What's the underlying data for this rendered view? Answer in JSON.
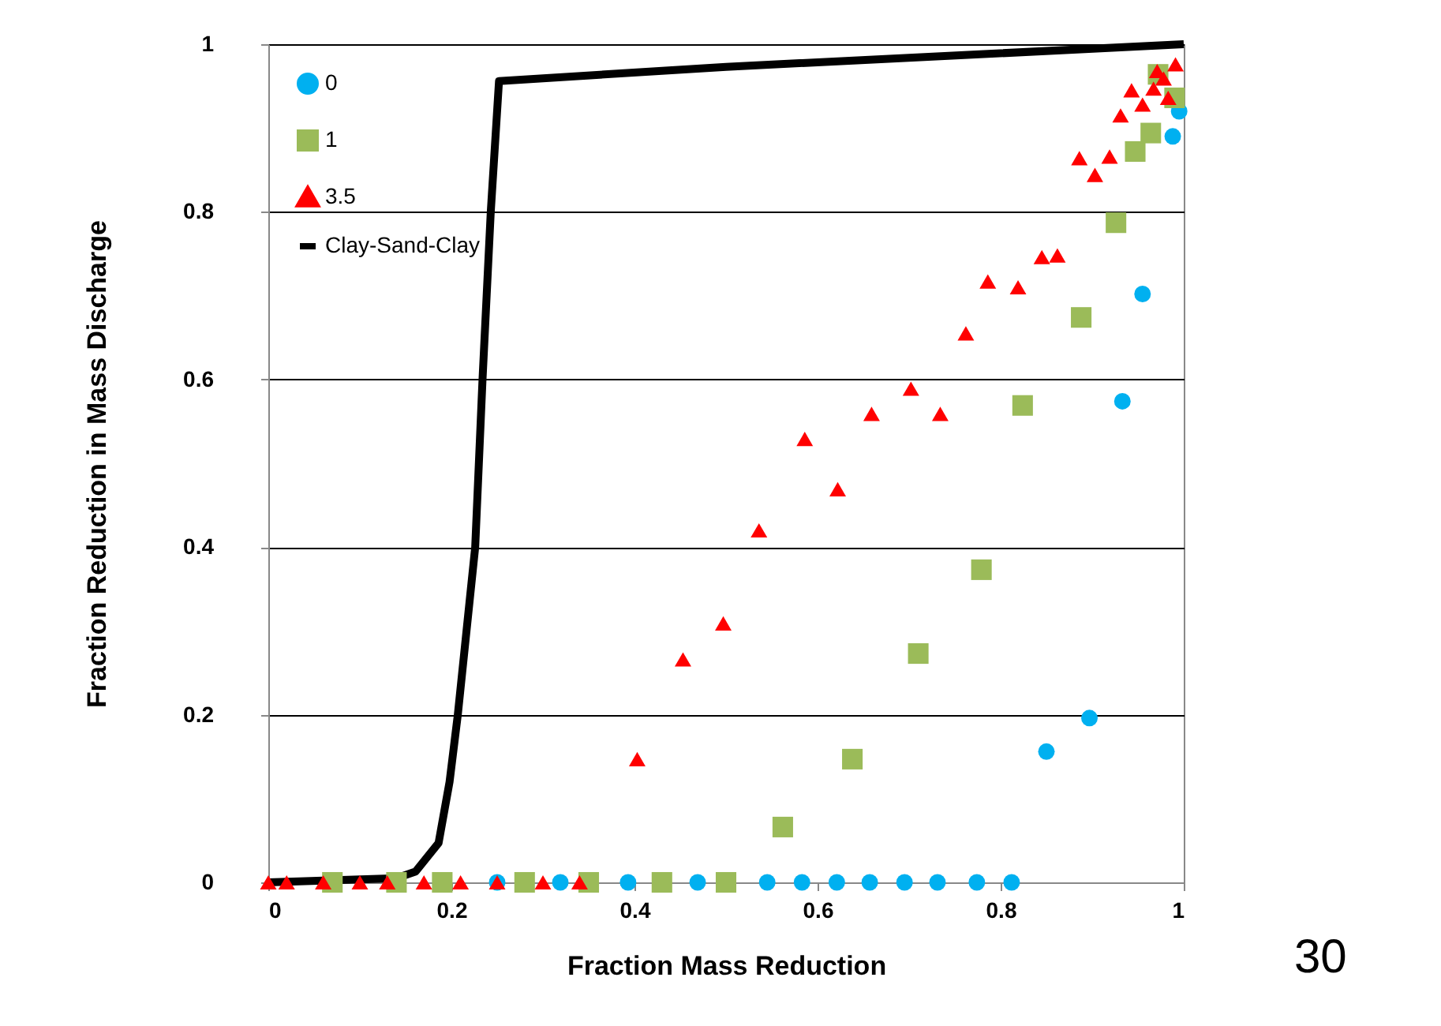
{
  "chart_data": {
    "type": "scatter",
    "xlabel": "Fraction Mass Reduction",
    "ylabel": "Fraction Reduction in Mass Discharge",
    "xlim": [
      0,
      1
    ],
    "ylim": [
      0,
      1
    ],
    "xticks": [
      0,
      0.2,
      0.4,
      0.6,
      0.8,
      1
    ],
    "yticks": [
      0,
      0.2,
      0.4,
      0.6,
      0.8,
      1
    ],
    "grid": "y",
    "legend": "top left",
    "series": [
      {
        "name": "0",
        "color": "#00b0f0",
        "marker": "circle",
        "x": [
          0.25,
          0.319,
          0.393,
          0.469,
          0.545,
          0.583,
          0.621,
          0.657,
          0.695,
          0.731,
          0.774,
          0.812,
          0.85,
          0.897,
          0.933,
          0.955,
          0.988,
          0.995
        ],
        "values": [
          0,
          0,
          0,
          0,
          0,
          0,
          0,
          0,
          0,
          0,
          0,
          0,
          0.156,
          0.196,
          0.574,
          0.702,
          0.89,
          0.92
        ]
      },
      {
        "name": "1",
        "color": "#9bbb59",
        "marker": "square",
        "x": [
          0.07,
          0.14,
          0.19,
          0.28,
          0.35,
          0.43,
          0.5,
          0.562,
          0.638,
          0.71,
          0.779,
          0.824,
          0.888,
          0.926,
          0.947,
          0.964,
          0.972,
          0.99
        ],
        "values": [
          0,
          0,
          0,
          0,
          0,
          0,
          0,
          0.066,
          0.147,
          0.273,
          0.373,
          0.569,
          0.674,
          0.787,
          0.872,
          0.894,
          0.964,
          0.936
        ]
      },
      {
        "name": "3.5",
        "color": "#ff0000",
        "marker": "triangle",
        "x": [
          0,
          0.02,
          0.06,
          0.1,
          0.13,
          0.17,
          0.21,
          0.25,
          0.3,
          0.34,
          0.403,
          0.453,
          0.497,
          0.536,
          0.586,
          0.622,
          0.659,
          0.702,
          0.734,
          0.762,
          0.786,
          0.819,
          0.845,
          0.862,
          0.886,
          0.903,
          0.919,
          0.931,
          0.943,
          0.955,
          0.967,
          0.971,
          0.978,
          0.983,
          0.991
        ],
        "values": [
          0,
          0,
          0,
          0,
          0,
          0,
          0,
          0,
          0,
          0,
          0.147,
          0.266,
          0.309,
          0.42,
          0.529,
          0.469,
          0.559,
          0.589,
          0.559,
          0.655,
          0.717,
          0.71,
          0.746,
          0.748,
          0.864,
          0.844,
          0.866,
          0.915,
          0.945,
          0.928,
          0.947,
          0.968,
          0.959,
          0.936,
          0.976
        ]
      },
      {
        "name": "Clay-Sand-Clay",
        "type": "line",
        "color": "#000000",
        "marker": "none",
        "line_style": "solid",
        "x": [
          0,
          0.14,
          0.161,
          0.186,
          0.198,
          0.207,
          0.226,
          0.234,
          0.243,
          0.252,
          0.5,
          1
        ],
        "values": [
          0,
          0.005,
          0.013,
          0.047,
          0.12,
          0.2,
          0.4,
          0.6,
          0.8,
          0.956,
          0.973,
          1
        ]
      }
    ],
    "annotations": [
      "30"
    ]
  }
}
